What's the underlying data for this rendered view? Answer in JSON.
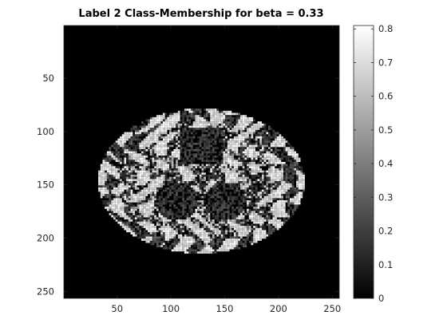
{
  "chart_data": {
    "type": "heatmap",
    "title": "Label 2 Class-Membership for beta = 0.33",
    "xlabel": "",
    "ylabel": "",
    "xlim": [
      0.5,
      256.5
    ],
    "ylim": [
      0.5,
      256.5
    ],
    "y_reversed": true,
    "x_ticks": [
      50,
      100,
      150,
      200,
      250
    ],
    "y_ticks": [
      50,
      100,
      150,
      200,
      250
    ],
    "colormap": "gray",
    "clim": [
      0,
      0.81
    ],
    "colorbar_ticks": [
      0,
      0.1,
      0.2,
      0.3,
      0.4,
      0.5,
      0.6,
      0.7,
      0.8
    ],
    "grid": false,
    "image_size": [
      256,
      256
    ],
    "image_content": "axial brain MRI slice membership map: bright white-matter regions on black background"
  },
  "colors": {
    "background": "#ffffff",
    "axes_border": "#262626",
    "image_background": "#000000"
  }
}
